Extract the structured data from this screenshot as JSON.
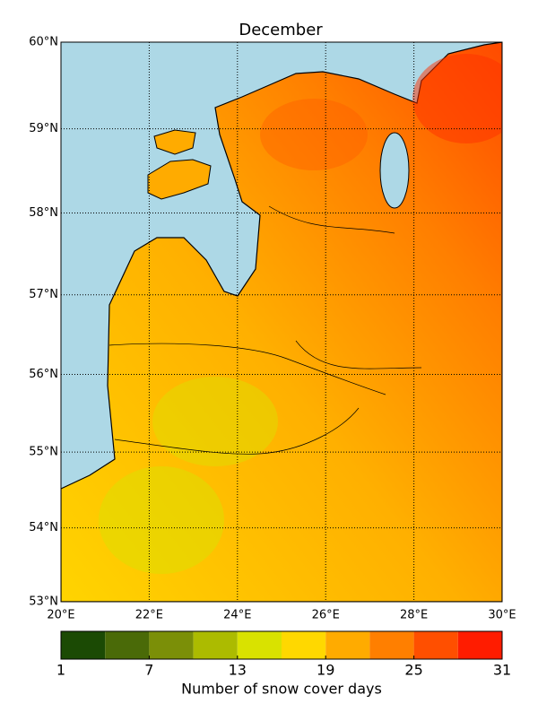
{
  "chart_data": {
    "type": "map",
    "title": "December",
    "lonticks": [
      {
        "value": 20,
        "label": "20°E"
      },
      {
        "value": 22,
        "label": "22°E"
      },
      {
        "value": 24,
        "label": "24°E"
      },
      {
        "value": 26,
        "label": "26°E"
      },
      {
        "value": 28,
        "label": "28°E"
      },
      {
        "value": 30,
        "label": "30°E"
      }
    ],
    "latticks": [
      {
        "value": 53,
        "label": "53°N"
      },
      {
        "value": 54,
        "label": "54°N"
      },
      {
        "value": 55,
        "label": "55°N"
      },
      {
        "value": 56,
        "label": "56°N"
      },
      {
        "value": 57,
        "label": "57°N"
      },
      {
        "value": 58,
        "label": "58°N"
      },
      {
        "value": 59,
        "label": "59°N"
      },
      {
        "value": 60,
        "label": "60°N"
      }
    ],
    "xlim": [
      20,
      30
    ],
    "ylim": [
      53,
      60
    ],
    "colorbar": {
      "label": "Number of snow cover days",
      "lim": [
        1,
        31
      ],
      "bounds": [
        1,
        4,
        7,
        10,
        13,
        16,
        19,
        22,
        25,
        28,
        31
      ],
      "colors": [
        "#1b4a04",
        "#4a6a08",
        "#7b8f08",
        "#acbb00",
        "#d9e200",
        "#ffd800",
        "#ffab00",
        "#ff7f00",
        "#ff4f00",
        "#ff1c00"
      ],
      "ticks": [
        1,
        7,
        13,
        19,
        25,
        31
      ]
    }
  }
}
